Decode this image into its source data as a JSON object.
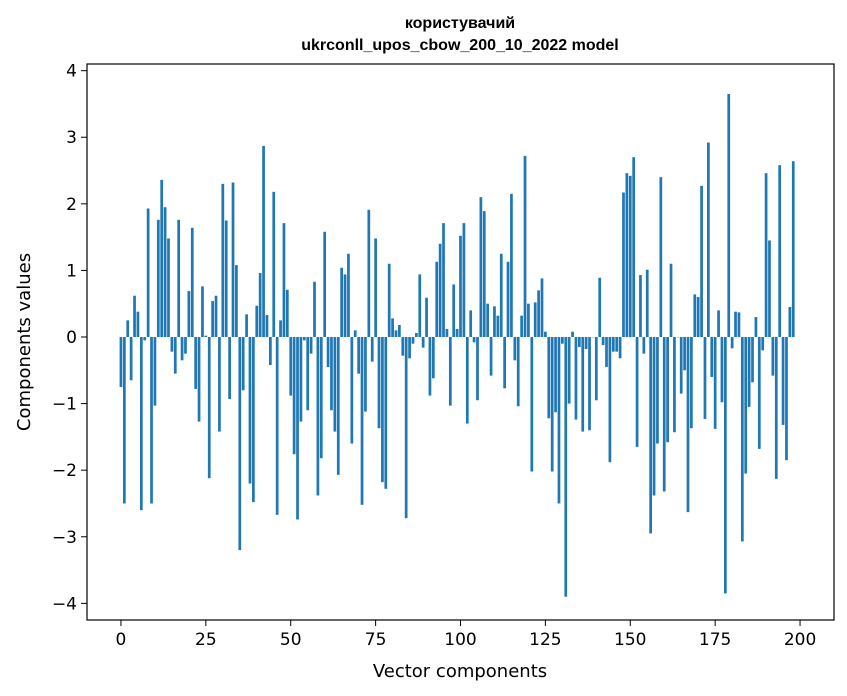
{
  "chart_data": {
    "type": "bar",
    "title": "користувачий",
    "subtitle": "ukrconll_upos_cbow_200_10_2022 model",
    "xlabel": "Vector components",
    "ylabel": "Components values",
    "xlim": [
      -10,
      210
    ],
    "ylim": [
      -4.25,
      4.1
    ],
    "xticks": [
      0,
      25,
      50,
      75,
      100,
      125,
      150,
      175,
      200
    ],
    "yticks": [
      -4,
      -3,
      -2,
      -1,
      0,
      1,
      2,
      3,
      4
    ],
    "xtick_labels": [
      "0",
      "25",
      "50",
      "75",
      "100",
      "125",
      "150",
      "175",
      "200"
    ],
    "ytick_labels": [
      "−4",
      "−3",
      "−2",
      "−1",
      "0",
      "1",
      "2",
      "3",
      "4"
    ],
    "grid": false,
    "color": "#1f77b4",
    "values": [
      -0.75,
      -2.5,
      0.25,
      -0.65,
      0.62,
      0.38,
      -2.6,
      -0.05,
      1.93,
      -2.5,
      -1.03,
      1.76,
      2.36,
      1.95,
      1.48,
      -0.22,
      -0.55,
      1.76,
      -0.35,
      -0.25,
      0.69,
      1.64,
      -0.78,
      -1.27,
      0.76,
      0.02,
      -2.12,
      0.54,
      0.62,
      -1.42,
      2.3,
      1.75,
      -0.93,
      2.32,
      1.08,
      -3.2,
      -0.8,
      0.34,
      -2.2,
      -2.48,
      0.47,
      0.96,
      2.87,
      0.33,
      -0.42,
      2.18,
      -2.67,
      0.25,
      1.71,
      0.71,
      -0.88,
      -1.76,
      -2.74,
      -1.27,
      -0.05,
      -1.1,
      -0.25,
      0.83,
      -2.38,
      -1.82,
      1.58,
      -0.45,
      -1.1,
      -1.42,
      -2.07,
      1.04,
      0.94,
      1.25,
      -1.6,
      0.1,
      -0.55,
      -2.52,
      -1.12,
      1.91,
      -0.37,
      1.48,
      -1.37,
      -2.18,
      -2.28,
      1.1,
      0.28,
      0.1,
      0.18,
      -0.28,
      -2.72,
      -0.32,
      -0.1,
      0.06,
      0.94,
      -0.16,
      0.59,
      -0.88,
      -0.62,
      1.13,
      1.4,
      1.71,
      0.12,
      -1.03,
      0.79,
      0.12,
      1.52,
      1.71,
      -1.3,
      0.4,
      -0.08,
      -0.95,
      2.1,
      1.89,
      0.5,
      -0.58,
      0.46,
      0.32,
      1.25,
      -0.77,
      1.13,
      2.15,
      -0.35,
      -1.04,
      0.32,
      2.72,
      0.5,
      -2.02,
      0.52,
      0.7,
      0.88,
      0.08,
      -1.22,
      -2.02,
      -1.13,
      -2.5,
      -0.1,
      -3.9,
      -1.0,
      0.08,
      -1.24,
      -0.15,
      -1.42,
      -0.18,
      -1.4,
      0.0,
      -0.95,
      0.89,
      -0.12,
      -0.45,
      -1.88,
      -0.22,
      -0.22,
      -0.32,
      2.17,
      2.46,
      2.42,
      2.7,
      -1.65,
      0.93,
      -0.25,
      1.01,
      -2.95,
      -2.38,
      -1.6,
      2.4,
      -2.32,
      -1.58,
      1.1,
      -1.43,
      0.0,
      -0.85,
      -0.5,
      -2.63,
      -1.37,
      0.64,
      0.6,
      2.27,
      -1.23,
      2.92,
      -0.6,
      -1.38,
      0.4,
      -0.98,
      -3.85,
      3.65,
      -0.17,
      0.38,
      0.37,
      -3.07,
      -2.05,
      -1.05,
      -0.68,
      0.3,
      -1.68,
      -0.2,
      2.46,
      1.45,
      -0.58,
      -2.13,
      2.58,
      -1.32,
      -1.85,
      0.45,
      2.64
    ]
  }
}
